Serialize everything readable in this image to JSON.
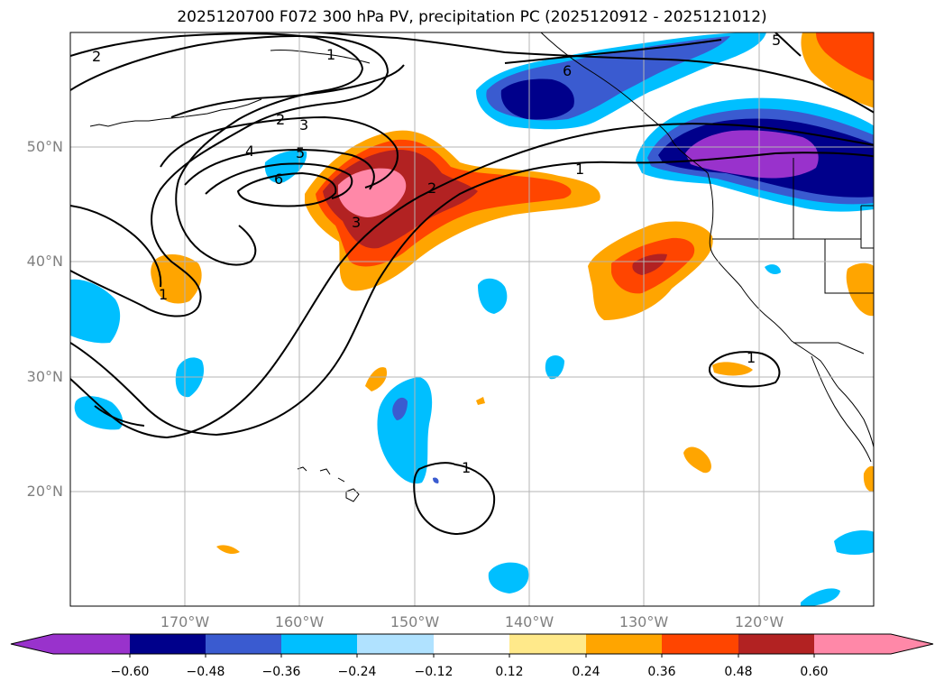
{
  "title": "2025120700 F072 300 hPa PV, precipitation PC (2025120912 - 2025121012)",
  "axes": {
    "lat_labels": [
      "50°N",
      "40°N",
      "30°N",
      "20°N"
    ],
    "lon_labels": [
      "170°W",
      "160°W",
      "150°W",
      "140°W",
      "130°W",
      "120°W"
    ]
  },
  "colorbar": {
    "tick_labels": [
      "−0.60",
      "−0.48",
      "−0.36",
      "−0.24",
      "−0.12",
      "0.12",
      "0.24",
      "0.36",
      "0.48",
      "0.60"
    ],
    "colors": [
      "#9932cc",
      "#00008b",
      "#3a5bd0",
      "#00bfff",
      "#b0e2ff",
      "#ffffff",
      "#ffe98a",
      "#ffa500",
      "#ff4500",
      "#b22222",
      "#ff88a8"
    ],
    "extend": "both"
  },
  "contours": {
    "variable": "300 hPa PV",
    "labels": [
      "2",
      "1",
      "2",
      "3",
      "4",
      "5",
      "6",
      "2",
      "3",
      "1",
      "6",
      "5",
      "1",
      "1",
      "1"
    ]
  },
  "map": {
    "projection": "PlateCarree",
    "extent_lon": [
      -180,
      -110
    ],
    "extent_lat": [
      10,
      60
    ],
    "gridlines": true
  }
}
